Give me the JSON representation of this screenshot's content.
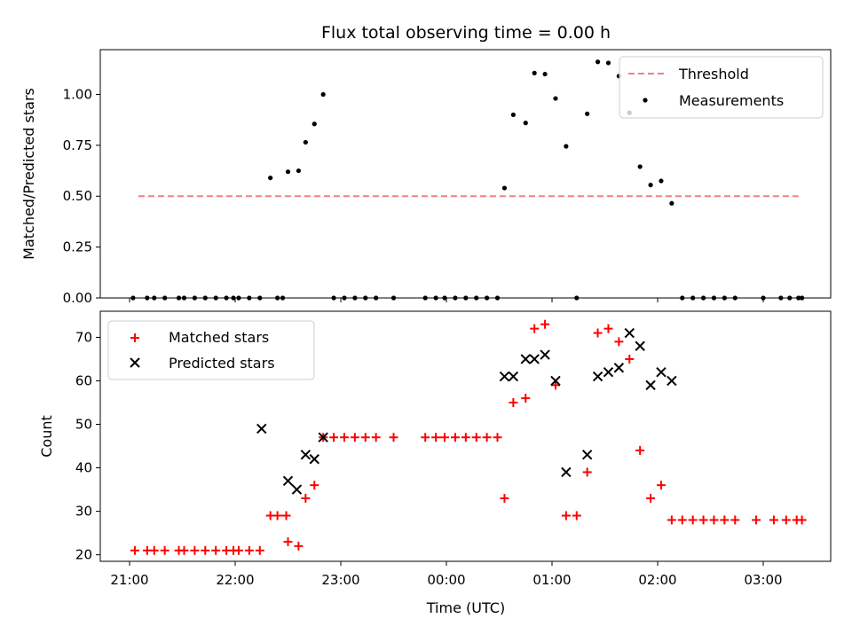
{
  "chart_data": [
    {
      "type": "scatter",
      "title": "Flux total observing time = 0.00 h",
      "xlabel": "",
      "ylabel": "Matched/Predicted stars",
      "ylim": [
        0,
        1.22
      ],
      "yticks": [
        "0.00",
        "0.25",
        "0.50",
        "0.75",
        "1.00"
      ],
      "ytick_values": [
        0,
        0.25,
        0.5,
        0.75,
        1.0
      ],
      "legend": {
        "placement": "top-right",
        "entries": [
          "Threshold",
          "Measurements"
        ]
      },
      "threshold": {
        "name": "Threshold",
        "value": 0.5,
        "x_start": "21:05",
        "x_end": "03:20",
        "color": "#f08080"
      },
      "series": [
        {
          "name": "Measurements",
          "color": "#000000",
          "points": [
            [
              "21:02",
              0
            ],
            [
              "21:10",
              0
            ],
            [
              "21:14",
              0
            ],
            [
              "21:20",
              0
            ],
            [
              "21:28",
              0
            ],
            [
              "21:31",
              0
            ],
            [
              "21:37",
              0
            ],
            [
              "21:43",
              0
            ],
            [
              "21:49",
              0
            ],
            [
              "21:55",
              0
            ],
            [
              "21:59",
              0
            ],
            [
              "22:02",
              0
            ],
            [
              "22:08",
              0
            ],
            [
              "22:14",
              0
            ],
            [
              "22:20",
              0.59
            ],
            [
              "22:24",
              0
            ],
            [
              "22:27",
              0
            ],
            [
              "22:30",
              0.62
            ],
            [
              "22:36",
              0.625
            ],
            [
              "22:40",
              0.765
            ],
            [
              "22:45",
              0.855
            ],
            [
              "22:50",
              1.0
            ],
            [
              "22:56",
              0
            ],
            [
              "23:02",
              0
            ],
            [
              "23:08",
              0
            ],
            [
              "23:14",
              0
            ],
            [
              "23:20",
              0
            ],
            [
              "23:30",
              0
            ],
            [
              "23:48",
              0
            ],
            [
              "23:54",
              0
            ],
            [
              "23:59",
              0
            ],
            [
              "00:05",
              0
            ],
            [
              "00:11",
              0
            ],
            [
              "00:17",
              0
            ],
            [
              "00:23",
              0
            ],
            [
              "00:29",
              0
            ],
            [
              "00:33",
              0.54
            ],
            [
              "00:38",
              0.9
            ],
            [
              "00:45",
              0.86
            ],
            [
              "00:50",
              1.105
            ],
            [
              "00:56",
              1.1
            ],
            [
              "01:02",
              0.98
            ],
            [
              "01:08",
              0.745
            ],
            [
              "01:14",
              0
            ],
            [
              "01:20",
              0.905
            ],
            [
              "01:26",
              1.16
            ],
            [
              "01:32",
              1.155
            ],
            [
              "01:38",
              1.09
            ],
            [
              "01:44",
              0.91
            ],
            [
              "01:50",
              0.645
            ],
            [
              "01:56",
              0.555
            ],
            [
              "02:02",
              0.575
            ],
            [
              "02:08",
              0.465
            ],
            [
              "02:14",
              0
            ],
            [
              "02:20",
              0
            ],
            [
              "02:26",
              0
            ],
            [
              "02:32",
              0
            ],
            [
              "02:38",
              0
            ],
            [
              "02:44",
              0
            ],
            [
              "03:00",
              0
            ],
            [
              "03:10",
              0
            ],
            [
              "03:15",
              0
            ],
            [
              "03:20",
              0
            ],
            [
              "03:22",
              0
            ]
          ]
        }
      ]
    },
    {
      "type": "scatter",
      "title": "",
      "xlabel": "Time (UTC)",
      "ylabel": "Count",
      "ylim": [
        18.5,
        76
      ],
      "yticks": [
        "20",
        "30",
        "40",
        "50",
        "60",
        "70"
      ],
      "ytick_values": [
        20,
        30,
        40,
        50,
        60,
        70
      ],
      "xticks": [
        "21:00",
        "22:00",
        "23:00",
        "00:00",
        "01:00",
        "02:00",
        "03:00"
      ],
      "legend": {
        "placement": "top-left",
        "entries": [
          "Matched stars",
          "Predicted stars"
        ]
      },
      "series": [
        {
          "name": "Matched stars",
          "marker": "plus",
          "color": "#ff0000",
          "points": [
            [
              "21:03",
              21
            ],
            [
              "21:10",
              21
            ],
            [
              "21:14",
              21
            ],
            [
              "21:20",
              21
            ],
            [
              "21:28",
              21
            ],
            [
              "21:31",
              21
            ],
            [
              "21:37",
              21
            ],
            [
              "21:43",
              21
            ],
            [
              "21:49",
              21
            ],
            [
              "21:55",
              21
            ],
            [
              "21:59",
              21
            ],
            [
              "22:02",
              21
            ],
            [
              "22:08",
              21
            ],
            [
              "22:14",
              21
            ],
            [
              "22:20",
              29
            ],
            [
              "22:24",
              29
            ],
            [
              "22:29",
              29
            ],
            [
              "22:30",
              23
            ],
            [
              "22:36",
              22
            ],
            [
              "22:40",
              33
            ],
            [
              "22:45",
              36
            ],
            [
              "22:50",
              47
            ],
            [
              "22:56",
              47
            ],
            [
              "23:02",
              47
            ],
            [
              "23:08",
              47
            ],
            [
              "23:14",
              47
            ],
            [
              "23:20",
              47
            ],
            [
              "23:30",
              47
            ],
            [
              "23:48",
              47
            ],
            [
              "23:54",
              47
            ],
            [
              "23:59",
              47
            ],
            [
              "00:05",
              47
            ],
            [
              "00:11",
              47
            ],
            [
              "00:17",
              47
            ],
            [
              "00:23",
              47
            ],
            [
              "00:29",
              47
            ],
            [
              "00:33",
              33
            ],
            [
              "00:38",
              55
            ],
            [
              "00:45",
              56
            ],
            [
              "00:50",
              72
            ],
            [
              "00:56",
              73
            ],
            [
              "01:02",
              59
            ],
            [
              "01:08",
              29
            ],
            [
              "01:14",
              29
            ],
            [
              "01:20",
              39
            ],
            [
              "01:26",
              71
            ],
            [
              "01:32",
              72
            ],
            [
              "01:38",
              69
            ],
            [
              "01:44",
              65
            ],
            [
              "01:50",
              44
            ],
            [
              "01:56",
              33
            ],
            [
              "02:02",
              36
            ],
            [
              "02:08",
              28
            ],
            [
              "02:14",
              28
            ],
            [
              "02:20",
              28
            ],
            [
              "02:26",
              28
            ],
            [
              "02:32",
              28
            ],
            [
              "02:38",
              28
            ],
            [
              "02:44",
              28
            ],
            [
              "02:56",
              28
            ],
            [
              "03:06",
              28
            ],
            [
              "03:13",
              28
            ],
            [
              "03:19",
              28
            ],
            [
              "03:22",
              28
            ]
          ]
        },
        {
          "name": "Predicted stars",
          "marker": "x",
          "color": "#000000",
          "points": [
            [
              "22:15",
              49
            ],
            [
              "22:30",
              37
            ],
            [
              "22:35",
              35
            ],
            [
              "22:40",
              43
            ],
            [
              "22:45",
              42
            ],
            [
              "22:50",
              47
            ],
            [
              "00:33",
              61
            ],
            [
              "00:38",
              61
            ],
            [
              "00:45",
              65
            ],
            [
              "00:50",
              65
            ],
            [
              "00:56",
              66
            ],
            [
              "01:02",
              60
            ],
            [
              "01:08",
              39
            ],
            [
              "01:20",
              43
            ],
            [
              "01:26",
              61
            ],
            [
              "01:32",
              62
            ],
            [
              "01:38",
              63
            ],
            [
              "01:44",
              71
            ],
            [
              "01:50",
              68
            ],
            [
              "01:56",
              59
            ],
            [
              "02:02",
              62
            ],
            [
              "02:08",
              60
            ]
          ]
        }
      ]
    }
  ]
}
